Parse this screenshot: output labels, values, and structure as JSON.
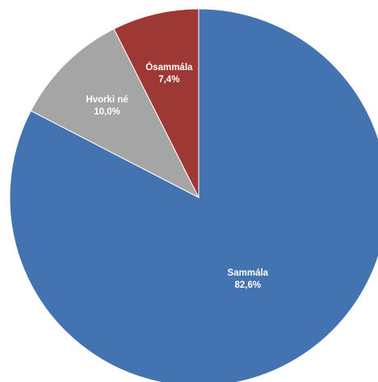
{
  "chart_data": {
    "type": "pie",
    "slices": [
      {
        "label": "Sammála",
        "value": 82.6,
        "value_text": "82,6%",
        "color": "#4473B1"
      },
      {
        "label": "Hvorki né",
        "value": 10.0,
        "value_text": "10,0%",
        "color": "#A5A5A5"
      },
      {
        "label": "Ósammála",
        "value": 7.4,
        "value_text": "7,4%",
        "color": "#9E3834"
      }
    ],
    "start": "12 o'clock",
    "direction": "clockwise",
    "legend": "none",
    "title": ""
  }
}
